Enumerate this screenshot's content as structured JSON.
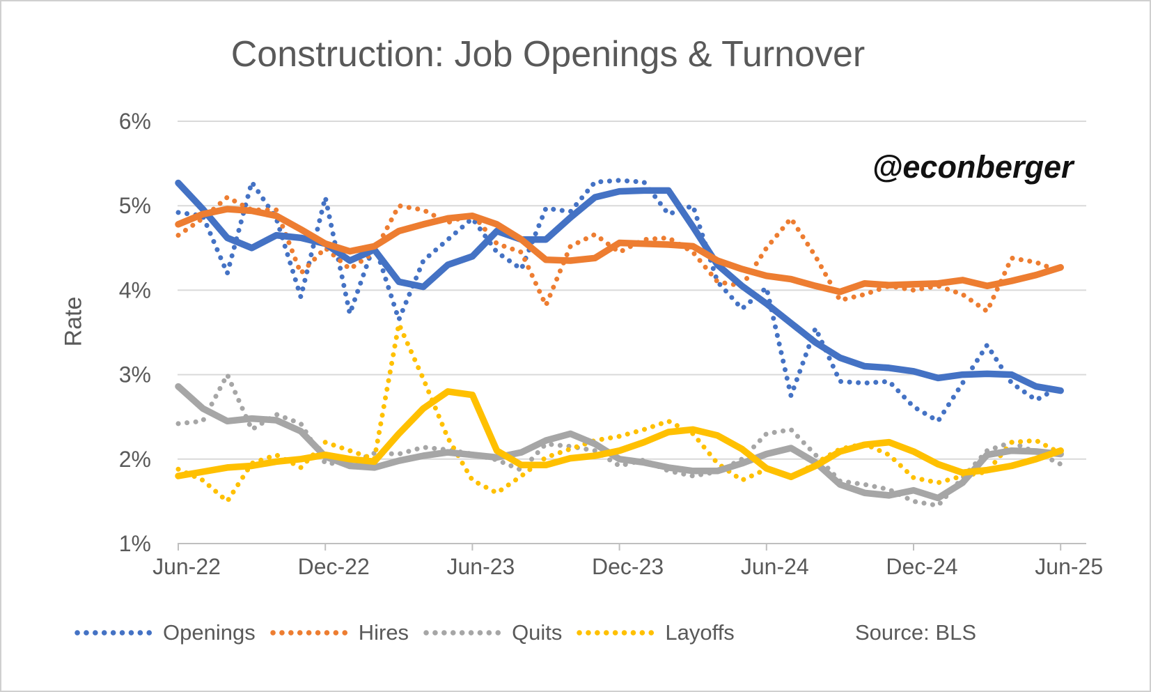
{
  "title": "Construction: Job Openings & Turnover",
  "watermark": "@econberger",
  "source": "Source: BLS",
  "y_axis": {
    "label": "Rate",
    "tick_labels": [
      "6%",
      "5%",
      "4%",
      "3%",
      "2%",
      "1%"
    ],
    "min": 1,
    "max": 6
  },
  "x_axis": {
    "tick_labels": [
      "Jun-22",
      "Dec-22",
      "Jun-23",
      "Dec-23",
      "Jun-24",
      "Dec-24",
      "Jun-25"
    ]
  },
  "colors": {
    "openings": "#4472C4",
    "hires": "#ED7D31",
    "quits": "#A6A6A6",
    "layoffs": "#FFC000",
    "text": "#595959",
    "gridline": "#D9D9D9",
    "axis": "#BFBFBF"
  },
  "chart_data": {
    "type": "line",
    "title": "Construction: Job Openings & Turnover",
    "ylabel": "Rate",
    "ylim": [
      1,
      6
    ],
    "grid": "horizontal",
    "legend_position": "bottom",
    "x": [
      "Jun-22",
      "Jul-22",
      "Aug-22",
      "Sep-22",
      "Oct-22",
      "Nov-22",
      "Dec-22",
      "Jan-23",
      "Feb-23",
      "Mar-23",
      "Apr-23",
      "May-23",
      "Jun-23",
      "Jul-23",
      "Aug-23",
      "Sep-23",
      "Oct-23",
      "Nov-23",
      "Dec-23",
      "Jan-24",
      "Feb-24",
      "Mar-24",
      "Apr-24",
      "May-24",
      "Jun-24",
      "Jul-24",
      "Aug-24",
      "Sep-24",
      "Oct-24",
      "Nov-24",
      "Dec-24",
      "Jan-25",
      "Feb-25",
      "Mar-25",
      "Apr-25",
      "May-25",
      "Jun-25"
    ],
    "legend": [
      {
        "label": "Openings",
        "color": "#4472C4"
      },
      {
        "label": "Hires",
        "color": "#ED7D31"
      },
      {
        "label": "Quits",
        "color": "#A6A6A6"
      },
      {
        "label": "Layoffs",
        "color": "#FFC000"
      }
    ],
    "series": [
      {
        "name": "Openings (monthly)",
        "color": "#4472C4",
        "style": "dotted",
        "values": [
          4.92,
          4.88,
          4.2,
          5.28,
          4.85,
          3.92,
          5.1,
          3.72,
          4.55,
          3.65,
          4.35,
          4.6,
          4.85,
          4.45,
          4.25,
          4.97,
          4.93,
          5.28,
          5.3,
          5.28,
          4.9,
          5.0,
          4.1,
          3.78,
          4.03,
          2.75,
          3.55,
          2.92,
          2.9,
          2.92,
          2.62,
          2.45,
          2.9,
          3.35,
          2.9,
          2.7,
          2.86
        ]
      },
      {
        "name": "Hires (monthly)",
        "color": "#ED7D31",
        "style": "dotted",
        "values": [
          4.65,
          4.85,
          5.1,
          4.95,
          4.95,
          4.2,
          4.5,
          4.25,
          4.45,
          5.0,
          4.95,
          4.8,
          4.9,
          4.55,
          4.45,
          3.82,
          4.52,
          4.66,
          4.45,
          4.6,
          4.62,
          4.45,
          4.1,
          4.05,
          4.5,
          4.85,
          4.4,
          3.88,
          3.95,
          4.05,
          4.0,
          4.05,
          3.95,
          3.75,
          4.38,
          4.33,
          4.22
        ]
      },
      {
        "name": "Quits (monthly)",
        "color": "#A6A6A6",
        "style": "dotted",
        "values": [
          2.42,
          2.45,
          3.0,
          2.35,
          2.53,
          2.42,
          1.95,
          1.95,
          2.07,
          2.06,
          2.14,
          2.11,
          2.06,
          1.99,
          1.87,
          2.18,
          2.15,
          2.1,
          1.92,
          1.99,
          1.86,
          1.8,
          1.85,
          2.0,
          2.3,
          2.35,
          2.05,
          1.74,
          1.7,
          1.64,
          1.5,
          1.45,
          1.78,
          2.1,
          2.2,
          2.08,
          1.94
        ]
      },
      {
        "name": "Layoffs (monthly)",
        "color": "#FFC000",
        "style": "dotted",
        "values": [
          1.88,
          1.75,
          1.5,
          1.95,
          2.05,
          1.9,
          2.2,
          2.1,
          2.0,
          3.6,
          2.95,
          2.25,
          1.75,
          1.6,
          1.8,
          2.02,
          2.12,
          2.22,
          2.27,
          2.35,
          2.45,
          2.3,
          1.95,
          1.75,
          1.88,
          1.78,
          1.95,
          2.12,
          2.18,
          2.05,
          1.78,
          1.72,
          1.8,
          1.85,
          2.2,
          2.22,
          2.07
        ]
      },
      {
        "name": "Openings (3-month average)",
        "color": "#4472C4",
        "style": "solid",
        "values": [
          5.27,
          4.96,
          4.62,
          4.5,
          4.65,
          4.62,
          4.55,
          4.35,
          4.48,
          4.1,
          4.04,
          4.3,
          4.4,
          4.7,
          4.6,
          4.6,
          4.86,
          5.1,
          5.17,
          5.18,
          5.18,
          4.75,
          4.3,
          4.05,
          3.84,
          3.61,
          3.38,
          3.2,
          3.1,
          3.08,
          3.04,
          2.96,
          3.0,
          3.01,
          3.0,
          2.86,
          2.81
        ]
      },
      {
        "name": "Hires (3-month average)",
        "color": "#ED7D31",
        "style": "solid",
        "values": [
          4.78,
          4.9,
          4.96,
          4.94,
          4.88,
          4.72,
          4.55,
          4.46,
          4.52,
          4.7,
          4.78,
          4.85,
          4.88,
          4.78,
          4.6,
          4.36,
          4.35,
          4.38,
          4.56,
          4.55,
          4.54,
          4.52,
          4.35,
          4.25,
          4.17,
          4.13,
          4.05,
          3.98,
          4.08,
          4.06,
          4.07,
          4.08,
          4.12,
          4.05,
          4.11,
          4.18,
          4.27
        ]
      },
      {
        "name": "Quits (3-month average)",
        "color": "#A6A6A6",
        "style": "solid",
        "values": [
          2.86,
          2.6,
          2.45,
          2.48,
          2.46,
          2.33,
          2.03,
          1.92,
          1.9,
          1.98,
          2.04,
          2.08,
          2.05,
          2.02,
          2.08,
          2.22,
          2.3,
          2.18,
          2.0,
          1.96,
          1.9,
          1.86,
          1.86,
          1.95,
          2.06,
          2.13,
          1.96,
          1.7,
          1.6,
          1.57,
          1.63,
          1.54,
          1.72,
          2.05,
          2.1,
          2.09,
          2.06
        ]
      },
      {
        "name": "Layoffs (3-month average)",
        "color": "#FFC000",
        "style": "solid",
        "values": [
          1.8,
          1.85,
          1.9,
          1.92,
          1.97,
          2.0,
          2.05,
          2.0,
          1.97,
          2.3,
          2.6,
          2.8,
          2.76,
          2.1,
          1.93,
          1.93,
          2.01,
          2.04,
          2.1,
          2.2,
          2.32,
          2.35,
          2.28,
          2.12,
          1.89,
          1.79,
          1.92,
          2.09,
          2.17,
          2.2,
          2.09,
          1.94,
          1.84,
          1.87,
          1.92,
          2.0,
          2.1
        ]
      }
    ]
  }
}
